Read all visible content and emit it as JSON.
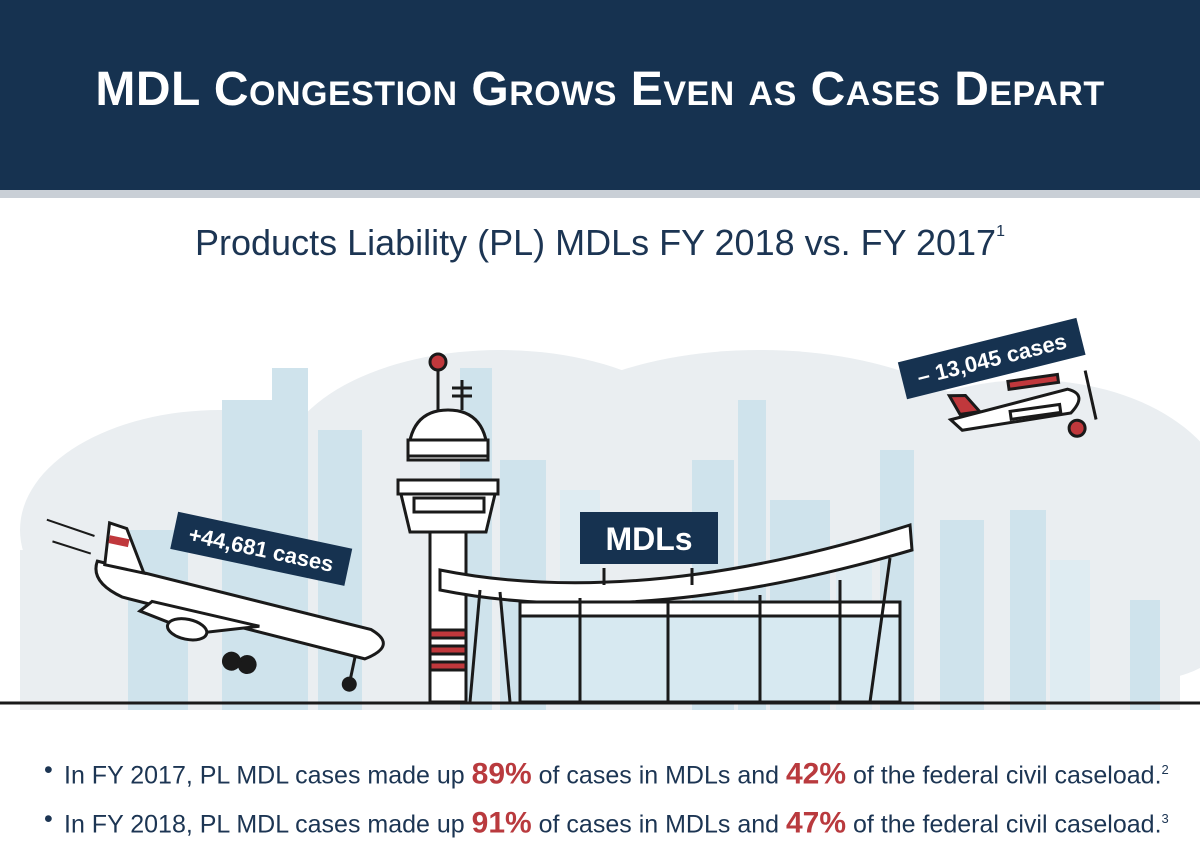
{
  "title": "MDL Congestion Grows Even as Cases Depart",
  "subtitle": {
    "text": "Products Liability (PL) MDLs FY 2018 vs. FY 2017",
    "footnote": "1"
  },
  "labels": {
    "arrivals": "+44,681 cases",
    "departures": "– 13,045 cases",
    "terminal": "MDLs"
  },
  "bullets": [
    {
      "prefix": "In FY 2017, PL MDL cases made up",
      "pct_mdl": "89%",
      "middle": "of cases in MDLs and",
      "pct_fed": "42%",
      "suffix": "of the federal civil caseload.",
      "footnote": "2"
    },
    {
      "prefix": "In FY 2018, PL MDL cases made up",
      "pct_mdl": "91%",
      "middle": "of cases in MDLs and",
      "pct_fed": "47%",
      "suffix": "of the federal civil caseload.",
      "footnote": "3"
    }
  ],
  "colors": {
    "navy": "#163250",
    "accent_red": "#b93a3e",
    "sky": "#cfe3ec"
  }
}
